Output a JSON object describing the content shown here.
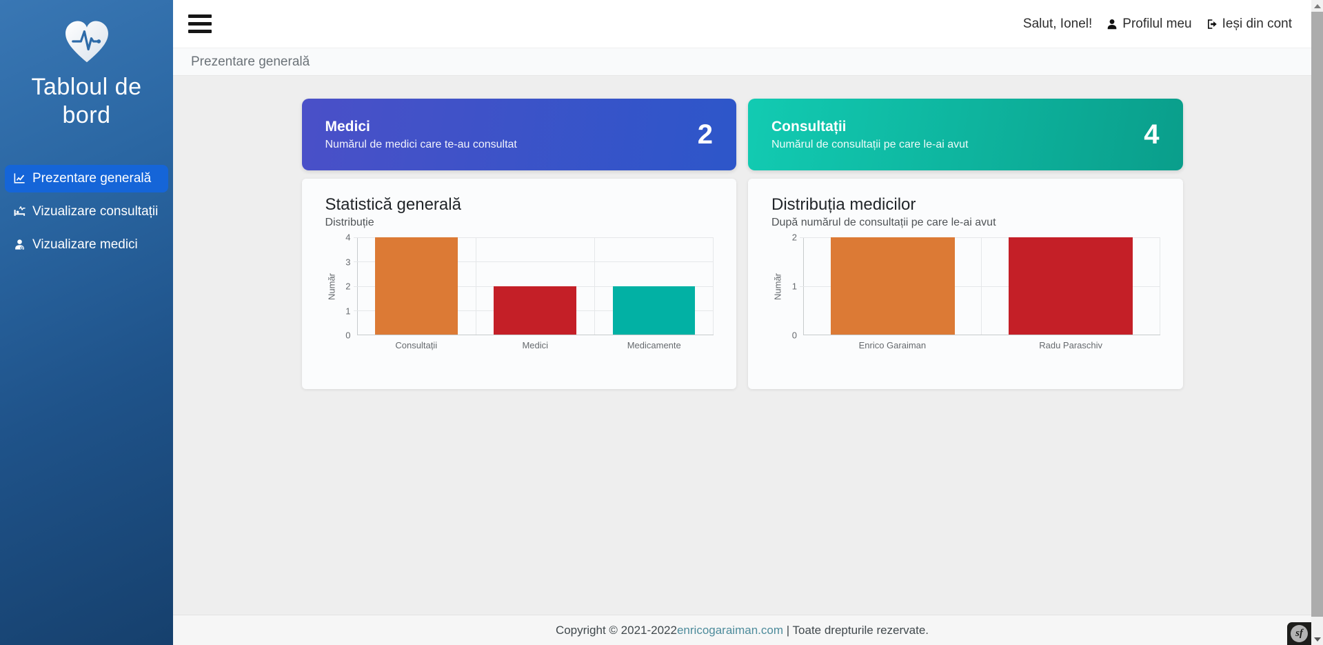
{
  "sidebar": {
    "title": "Tabloul de bord",
    "logo_icon": "heart-pulse-icon",
    "items": [
      {
        "label": "Prezentare generală",
        "icon": "chart-line-icon",
        "active": true
      },
      {
        "label": "Vizualizare consultații",
        "icon": "procedures-icon",
        "active": false
      },
      {
        "label": "Vizualizare medici",
        "icon": "user-md-icon",
        "active": false
      }
    ]
  },
  "topbar": {
    "greeting": "Salut, Ionel!",
    "profile_label": "Profilul meu",
    "logout_label": "Ieși din cont"
  },
  "breadcrumb": "Prezentare generală",
  "stat_cards": [
    {
      "title": "Medici",
      "subtitle": "Numărul de medici care te-au consultat",
      "value": "2",
      "gradient_from": "#4a50c8",
      "gradient_to": "#2d56c9"
    },
    {
      "title": "Consultații",
      "subtitle": "Numărul de consultații pe care le-ai avut",
      "value": "4",
      "gradient_from": "#12cbb2",
      "gradient_to": "#0a9e8b"
    }
  ],
  "chart_data": [
    {
      "type": "bar",
      "title": "Statistică generală",
      "subtitle": "Distribuție",
      "categories": [
        "Consultații",
        "Medici",
        "Medicamente"
      ],
      "values": [
        4,
        2,
        2
      ],
      "colors": [
        "#dc7a35",
        "#c41f27",
        "#02b1a4"
      ],
      "ylabel": "Număr",
      "xlabel": "",
      "ylim": [
        0,
        4
      ],
      "yticks": [
        0,
        1,
        2,
        3,
        4
      ],
      "grid": true,
      "legend": "none"
    },
    {
      "type": "bar",
      "title": "Distribuția medicilor",
      "subtitle": "După numărul de consultații pe care le-ai avut",
      "categories": [
        "Enrico Garaiman",
        "Radu Paraschiv"
      ],
      "values": [
        2,
        2
      ],
      "colors": [
        "#dc7a35",
        "#c41f27"
      ],
      "ylabel": "Număr",
      "xlabel": "",
      "ylim": [
        0,
        2
      ],
      "yticks": [
        0,
        1,
        2
      ],
      "grid": true,
      "legend": "none"
    }
  ],
  "footer": {
    "text_before": "Copyright © 2021-2022 ",
    "link": "enricogaraiman.com",
    "text_after": " | Toate drepturile rezervate."
  },
  "debug_badge": {
    "label": "sf"
  }
}
